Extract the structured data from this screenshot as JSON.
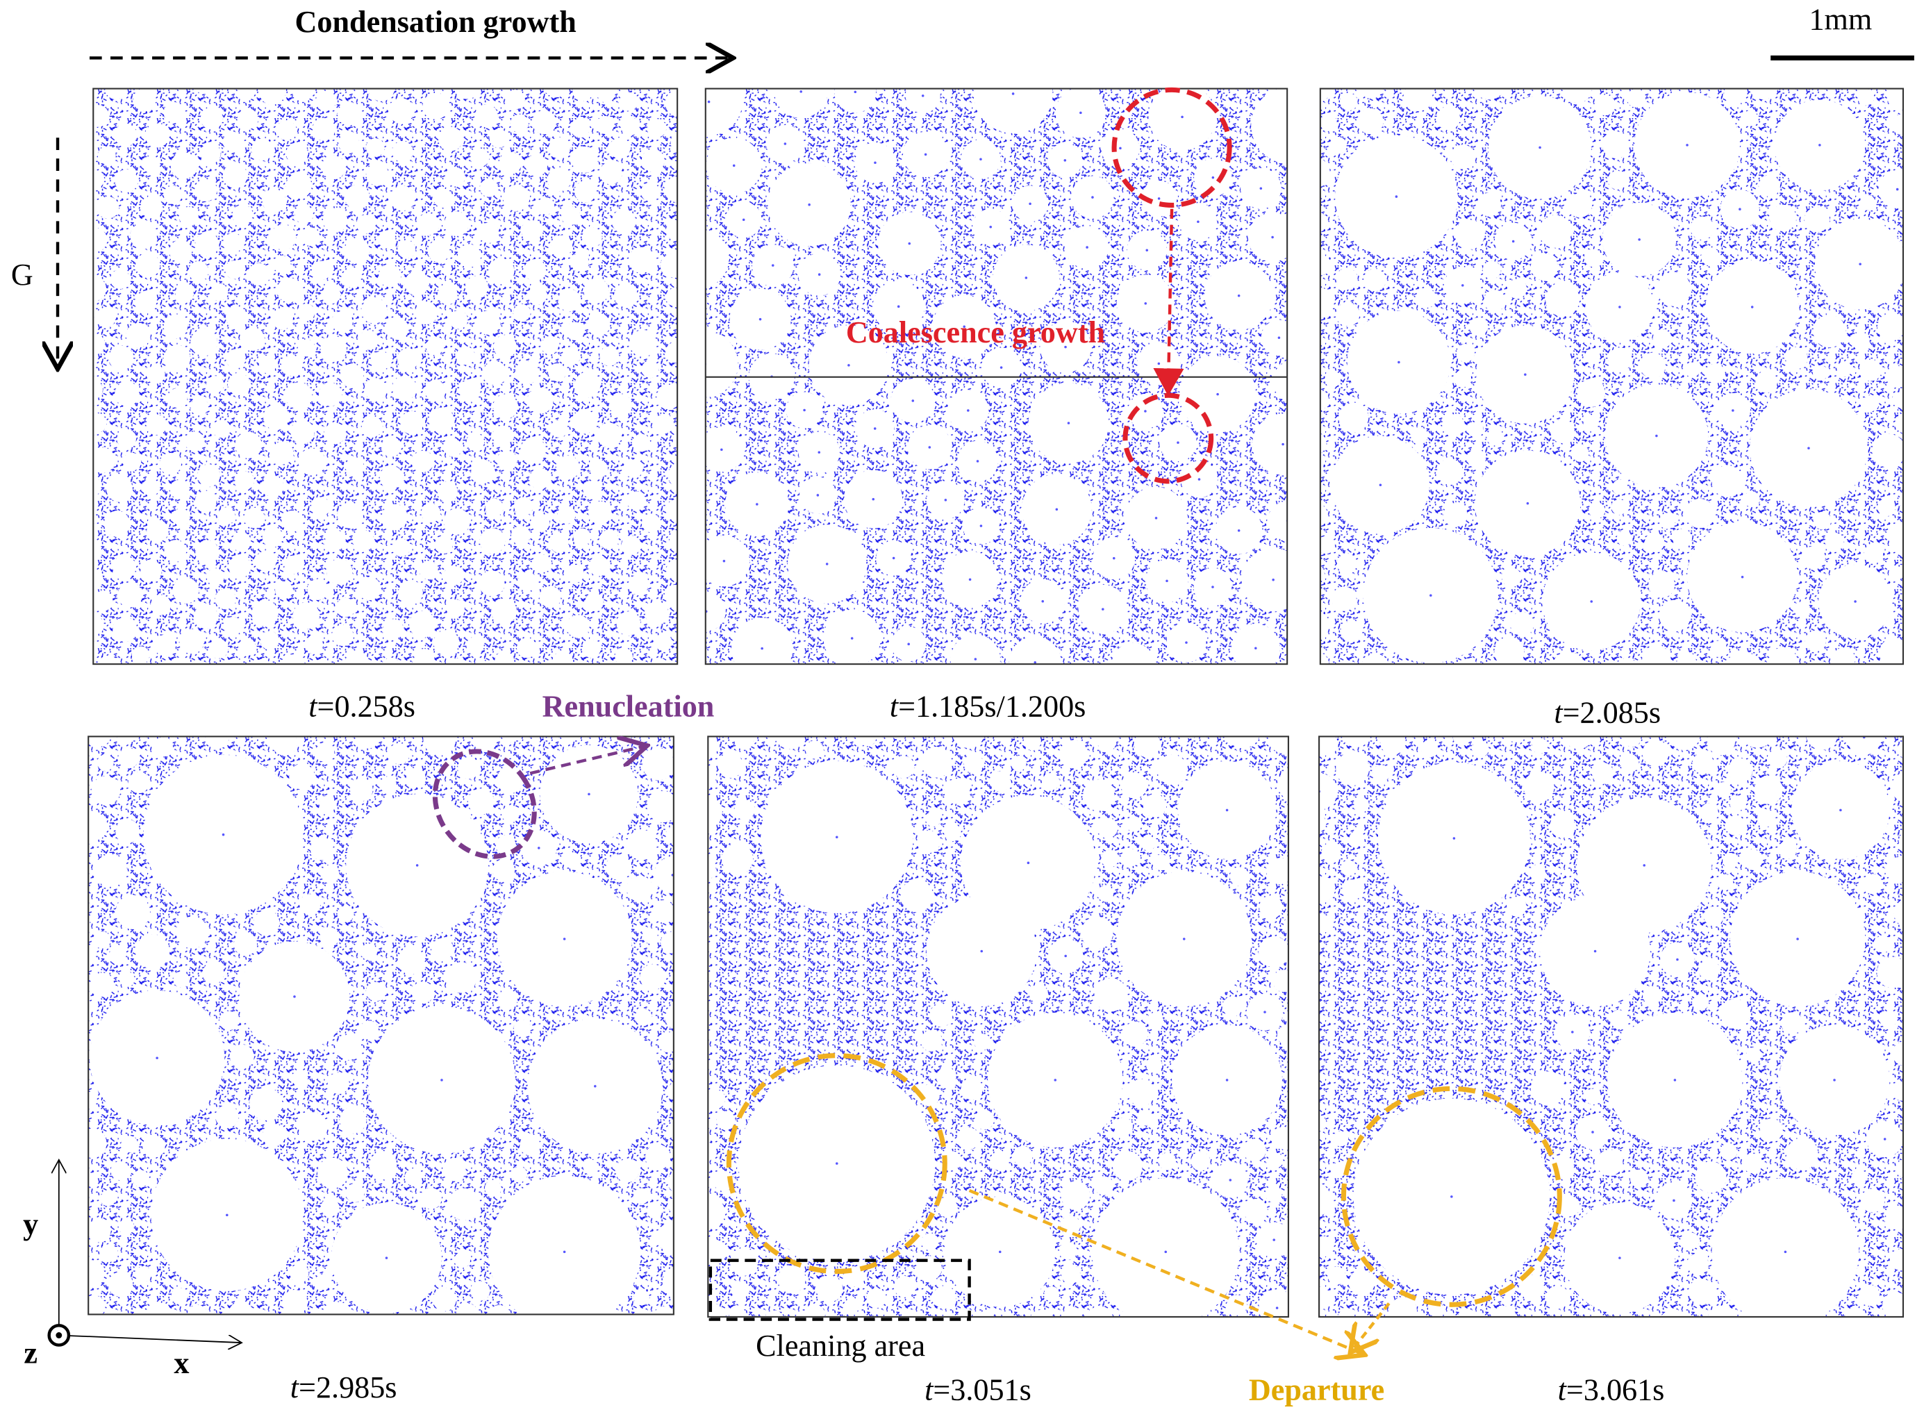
{
  "header": {
    "title": "Condensation growth",
    "scale_bar": "1mm",
    "gravity": "G"
  },
  "panels": [
    {
      "time": {
        "variable": "t",
        "value": "=0.258s"
      }
    },
    {
      "time": {
        "variable": "t",
        "value": "=1.185s/1.200s"
      }
    },
    {
      "time": {
        "variable": "t",
        "value": "=2.085s"
      }
    },
    {
      "time": {
        "variable": "t",
        "value": "=2.985s"
      }
    },
    {
      "time": {
        "variable": "t",
        "value": "=3.051s"
      }
    },
    {
      "time": {
        "variable": "t",
        "value": "=3.061s"
      }
    }
  ],
  "annotations": {
    "coalescence": "Coalescence growth",
    "renucleation": "Renucleation",
    "cleaning": "Cleaning area",
    "departure": "Departure"
  },
  "axes": {
    "y": "y",
    "z": "z",
    "x": "x"
  }
}
